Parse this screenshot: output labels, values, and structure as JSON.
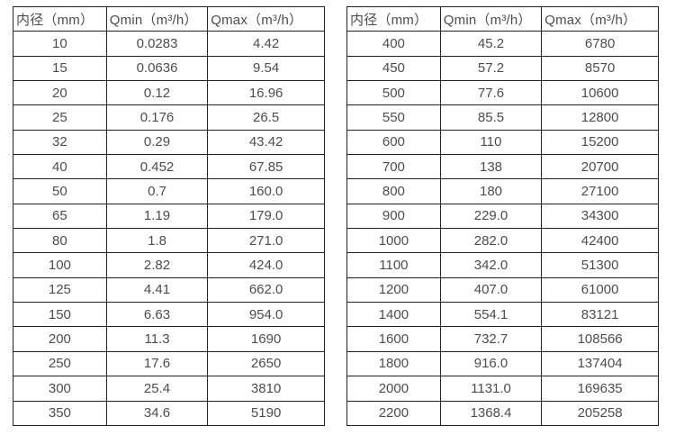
{
  "colors": {
    "border": "#222222",
    "text": "#4d4d4d",
    "background": "#ffffff"
  },
  "tables": [
    {
      "name": "flow-table-small-diameter",
      "headers": [
        "内径（mm）",
        "Qmin（m³/h）",
        "Qmax（m³/h）"
      ],
      "rows": [
        [
          "10",
          "0.0283",
          "4.42"
        ],
        [
          "15",
          "0.0636",
          "9.54"
        ],
        [
          "20",
          "0.12",
          "16.96"
        ],
        [
          "25",
          "0.176",
          "26.5"
        ],
        [
          "32",
          "0.29",
          "43.42"
        ],
        [
          "40",
          "0.452",
          "67.85"
        ],
        [
          "50",
          "0.7",
          "160.0"
        ],
        [
          "65",
          "1.19",
          "179.0"
        ],
        [
          "80",
          "1.8",
          "271.0"
        ],
        [
          "100",
          "2.82",
          "424.0"
        ],
        [
          "125",
          "4.41",
          "662.0"
        ],
        [
          "150",
          "6.63",
          "954.0"
        ],
        [
          "200",
          "11.3",
          "1690"
        ],
        [
          "250",
          "17.6",
          "2650"
        ],
        [
          "300",
          "25.4",
          "3810"
        ],
        [
          "350",
          "34.6",
          "5190"
        ]
      ]
    },
    {
      "name": "flow-table-large-diameter",
      "headers": [
        "内径（mm）",
        "Qmin（m³/h）",
        "Qmax（m³/h）"
      ],
      "rows": [
        [
          "400",
          "45.2",
          "6780"
        ],
        [
          "450",
          "57.2",
          "8570"
        ],
        [
          "500",
          "77.6",
          "10600"
        ],
        [
          "550",
          "85.5",
          "12800"
        ],
        [
          "600",
          "110",
          "15200"
        ],
        [
          "700",
          "138",
          "20700"
        ],
        [
          "800",
          "180",
          "27100"
        ],
        [
          "900",
          "229.0",
          "34300"
        ],
        [
          "1000",
          "282.0",
          "42400"
        ],
        [
          "1100",
          "342.0",
          "51300"
        ],
        [
          "1200",
          "407.0",
          "61000"
        ],
        [
          "1400",
          "554.1",
          "83121"
        ],
        [
          "1600",
          "732.7",
          "108566"
        ],
        [
          "1800",
          "916.0",
          "137404"
        ],
        [
          "2000",
          "1131.0",
          "169635"
        ],
        [
          "2200",
          "1368.4",
          "205258"
        ]
      ]
    }
  ]
}
